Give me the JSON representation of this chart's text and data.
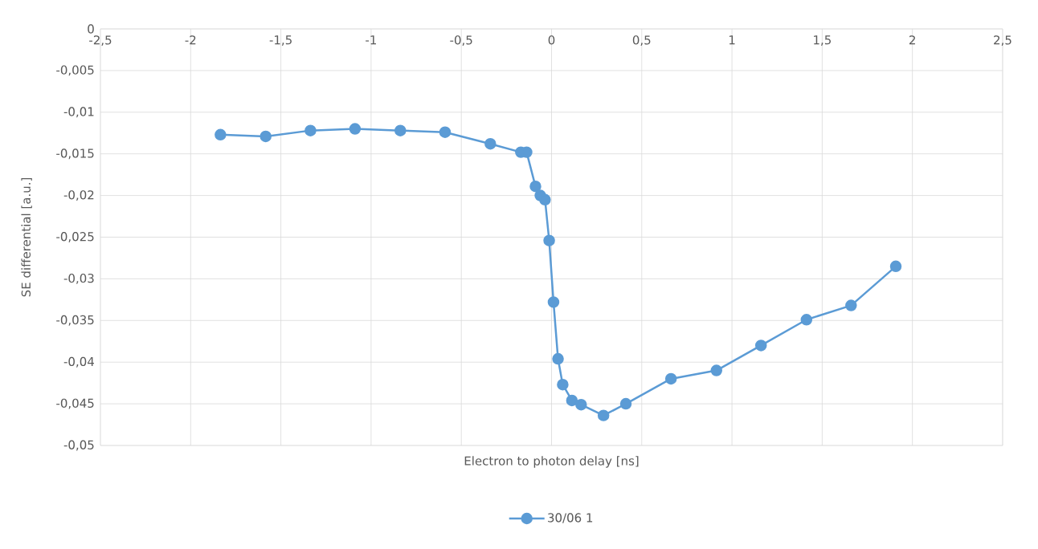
{
  "chart_data": {
    "type": "line",
    "xlabel": "Electron to photon delay [ns]",
    "ylabel": "SE differential [a.u.]",
    "x": [
      -1.835,
      -1.584,
      -1.336,
      -1.089,
      -0.838,
      -0.59,
      -0.339,
      -0.17,
      -0.138,
      -0.089,
      -0.062,
      -0.036,
      -0.013,
      0.011,
      0.036,
      0.062,
      0.113,
      0.164,
      0.288,
      0.412,
      0.662,
      0.914,
      1.161,
      1.413,
      1.66,
      1.908
    ],
    "series": [
      {
        "name": "30/06 1",
        "color": "#5b9bd5",
        "values": [
          -0.0127,
          -0.0129,
          -0.0122,
          -0.012,
          -0.0122,
          -0.0124,
          -0.0138,
          -0.0148,
          -0.0148,
          -0.0189,
          -0.02,
          -0.0205,
          -0.0254,
          -0.0328,
          -0.0396,
          -0.0427,
          -0.0446,
          -0.0451,
          -0.0464,
          -0.045,
          -0.042,
          -0.041,
          -0.038,
          -0.0349,
          -0.0332,
          -0.0285
        ]
      }
    ],
    "xlim": [
      -2.5,
      2.5
    ],
    "ylim": [
      -0.05,
      0
    ],
    "xticks": [
      {
        "value": -2.5,
        "label": "-2,5"
      },
      -2,
      {
        "value": -1.5,
        "label": "-1,5"
      },
      -1,
      {
        "value": -0.5,
        "label": "-0,5"
      },
      0,
      {
        "value": 0.5,
        "label": "0,5"
      },
      1,
      {
        "value": 1.5,
        "label": "1,5"
      },
      2,
      {
        "value": 2.5,
        "label": "2,5"
      }
    ],
    "yticks": [
      {
        "value": -0.05,
        "label": "-0,05"
      },
      {
        "value": -0.045,
        "label": "-0,045"
      },
      {
        "value": -0.04,
        "label": "-0,04"
      },
      {
        "value": -0.035,
        "label": "-0,035"
      },
      {
        "value": -0.03,
        "label": "-0,03"
      },
      {
        "value": -0.025,
        "label": "-0,025"
      },
      {
        "value": -0.02,
        "label": "-0,02"
      },
      {
        "value": -0.015,
        "label": "-0,015"
      },
      {
        "value": -0.01,
        "label": "-0,01"
      },
      {
        "value": -0.005,
        "label": "-0,005"
      },
      0
    ],
    "grid": true,
    "legend": "bottom",
    "marker": "circle",
    "line_style": "solid"
  }
}
